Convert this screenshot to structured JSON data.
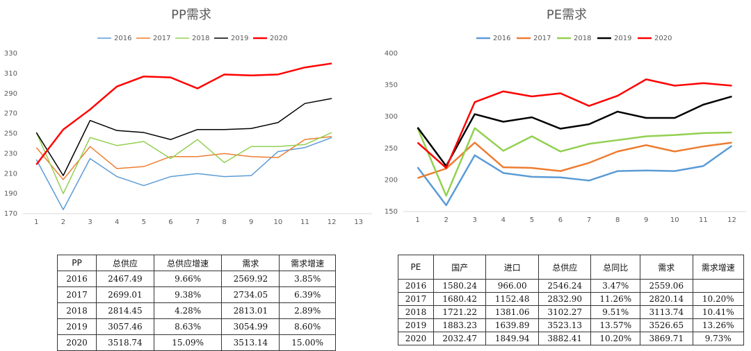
{
  "chart_data": [
    {
      "type": "line",
      "title": "PP需求",
      "x": [
        1,
        2,
        3,
        4,
        5,
        6,
        7,
        8,
        9,
        10,
        11,
        12
      ],
      "xlim": [
        0.5,
        13.5
      ],
      "xticks": [
        1,
        2,
        3,
        4,
        5,
        6,
        7,
        8,
        9,
        10,
        11,
        12,
        13
      ],
      "ylim": [
        170,
        330
      ],
      "yticks": [
        170,
        190,
        210,
        230,
        250,
        270,
        290,
        310,
        330
      ],
      "series": [
        {
          "name": "2016",
          "color": "#5b9bd5",
          "values": [
            224,
            174,
            225,
            207,
            198,
            207,
            210,
            207,
            208,
            232,
            236,
            246
          ]
        },
        {
          "name": "2017",
          "color": "#ed7d31",
          "values": [
            236,
            204,
            237,
            215,
            217,
            227,
            227,
            230,
            227,
            226,
            244,
            247
          ]
        },
        {
          "name": "2018",
          "color": "#92d050",
          "values": [
            251,
            190,
            246,
            238,
            242,
            225,
            244,
            221,
            237,
            237,
            239,
            251
          ]
        },
        {
          "name": "2019",
          "color": "#000000",
          "values": [
            251,
            208,
            263,
            253,
            251,
            244,
            254,
            254,
            255,
            261,
            280,
            285
          ]
        },
        {
          "name": "2020",
          "color": "#ff0000",
          "values": [
            219,
            254,
            274,
            297,
            307,
            306,
            295,
            309,
            308,
            309,
            316,
            320
          ]
        }
      ]
    },
    {
      "type": "line",
      "title": "PE需求",
      "x": [
        1,
        2,
        3,
        4,
        5,
        6,
        7,
        8,
        9,
        10,
        11,
        12
      ],
      "xlim": [
        0.5,
        12.5
      ],
      "xticks": [
        1,
        2,
        3,
        4,
        5,
        6,
        7,
        8,
        9,
        10,
        11,
        12
      ],
      "ylim": [
        150,
        400
      ],
      "yticks": [
        150,
        200,
        250,
        300,
        350,
        400
      ],
      "series": [
        {
          "name": "2016",
          "color": "#5b9bd5",
          "values": [
            220,
            160,
            239,
            211,
            205,
            204,
            199,
            214,
            215,
            214,
            222,
            254
          ]
        },
        {
          "name": "2017",
          "color": "#ed7d31",
          "values": [
            203,
            218,
            259,
            220,
            219,
            214,
            227,
            245,
            255,
            245,
            253,
            259
          ]
        },
        {
          "name": "2018",
          "color": "#92d050",
          "values": [
            282,
            175,
            282,
            246,
            269,
            245,
            257,
            263,
            269,
            271,
            274,
            275
          ]
        },
        {
          "name": "2019",
          "color": "#000000",
          "values": [
            283,
            222,
            304,
            292,
            299,
            281,
            288,
            308,
            298,
            298,
            319,
            332
          ]
        },
        {
          "name": "2020",
          "color": "#ff0000",
          "values": [
            259,
            219,
            323,
            340,
            332,
            337,
            317,
            333,
            359,
            349,
            353,
            349
          ]
        }
      ]
    }
  ],
  "tables": [
    {
      "header": [
        "PP",
        "总供应",
        "总供应增速",
        "需求",
        "需求增速"
      ],
      "rows": [
        [
          "2016",
          "2467.49",
          "9.66%",
          "2569.92",
          "3.85%"
        ],
        [
          "2017",
          "2699.01",
          "9.38%",
          "2734.05",
          "6.39%"
        ],
        [
          "2018",
          "2814.45",
          "4.28%",
          "2813.01",
          "2.89%"
        ],
        [
          "2019",
          "3057.46",
          "8.63%",
          "3054.99",
          "8.60%"
        ],
        [
          "2020",
          "3518.74",
          "15.09%",
          "3513.14",
          "15.00%"
        ]
      ]
    },
    {
      "header": [
        "PE",
        "国产",
        "进口",
        "总供应",
        "总同比",
        "需求",
        "需求增速"
      ],
      "rows": [
        [
          "2016",
          "1580.24",
          "966.00",
          "2546.24",
          "3.47%",
          "2559.06",
          null
        ],
        [
          "2017",
          "1680.42",
          "1152.48",
          "2832.90",
          "11.26%",
          "2820.14",
          "10.20%"
        ],
        [
          "2018",
          "1721.22",
          "1381.06",
          "3102.27",
          "9.51%",
          "3113.74",
          "10.41%"
        ],
        [
          "2019",
          "1883.23",
          "1639.89",
          "3523.13",
          "13.57%",
          "3526.65",
          "13.26%"
        ],
        [
          "2020",
          "2032.47",
          "1849.94",
          "3882.41",
          "10.20%",
          "3869.71",
          "9.73%"
        ]
      ]
    }
  ]
}
